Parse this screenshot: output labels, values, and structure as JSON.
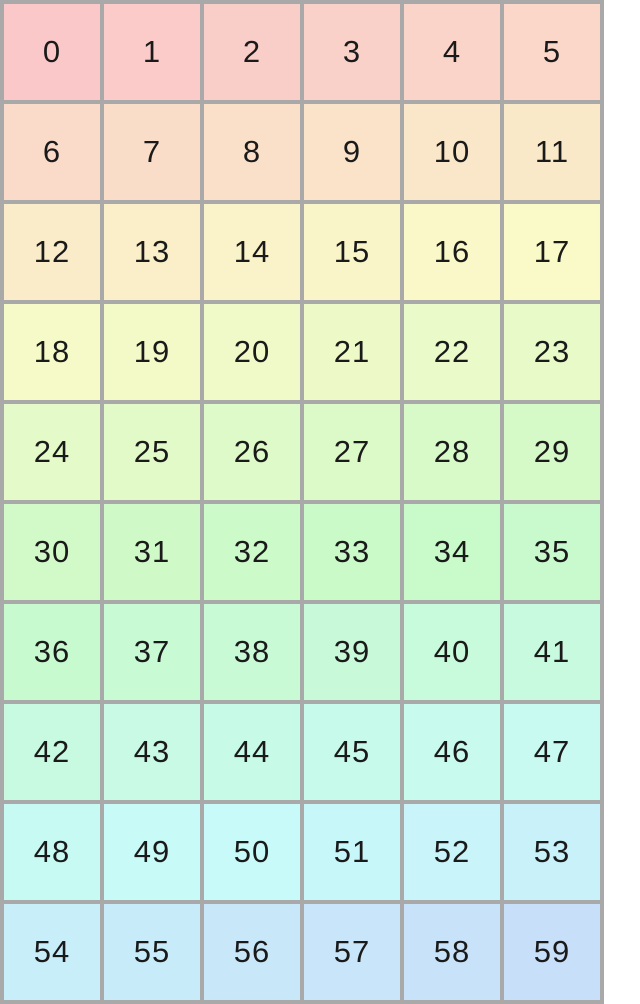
{
  "page": {
    "background_color": "#ffffff"
  },
  "grid": {
    "columns": 6,
    "rows": 10,
    "border_color": "#a9a9a9",
    "text_color": "#1a1a1a",
    "cells": [
      {
        "label": "0",
        "color": "#fac8c8"
      },
      {
        "label": "1",
        "color": "#facbc8"
      },
      {
        "label": "2",
        "color": "#facec8"
      },
      {
        "label": "3",
        "color": "#fad1c8"
      },
      {
        "label": "4",
        "color": "#fad4c8"
      },
      {
        "label": "5",
        "color": "#fad7c8"
      },
      {
        "label": "6",
        "color": "#fadac8"
      },
      {
        "label": "7",
        "color": "#faddc8"
      },
      {
        "label": "8",
        "color": "#fae0c8"
      },
      {
        "label": "9",
        "color": "#fae3c8"
      },
      {
        "label": "10",
        "color": "#fae6c8"
      },
      {
        "label": "11",
        "color": "#fae9c8"
      },
      {
        "label": "12",
        "color": "#faecc8"
      },
      {
        "label": "13",
        "color": "#faefc8"
      },
      {
        "label": "14",
        "color": "#faf2c8"
      },
      {
        "label": "15",
        "color": "#faf5c8"
      },
      {
        "label": "16",
        "color": "#faf8c8"
      },
      {
        "label": "17",
        "color": "#f9fac8"
      },
      {
        "label": "18",
        "color": "#f6fac8"
      },
      {
        "label": "19",
        "color": "#f3fac8"
      },
      {
        "label": "20",
        "color": "#f0fac8"
      },
      {
        "label": "21",
        "color": "#edfac8"
      },
      {
        "label": "22",
        "color": "#eafac8"
      },
      {
        "label": "23",
        "color": "#e7fac8"
      },
      {
        "label": "24",
        "color": "#e4fac8"
      },
      {
        "label": "25",
        "color": "#e1fac8"
      },
      {
        "label": "26",
        "color": "#defac8"
      },
      {
        "label": "27",
        "color": "#dbfac8"
      },
      {
        "label": "28",
        "color": "#d8fac8"
      },
      {
        "label": "29",
        "color": "#d5fac8"
      },
      {
        "label": "30",
        "color": "#d2fac8"
      },
      {
        "label": "31",
        "color": "#cffac8"
      },
      {
        "label": "32",
        "color": "#ccfac8"
      },
      {
        "label": "33",
        "color": "#c9fac8"
      },
      {
        "label": "34",
        "color": "#c8faca"
      },
      {
        "label": "35",
        "color": "#c8facd"
      },
      {
        "label": "36",
        "color": "#c8fad0"
      },
      {
        "label": "37",
        "color": "#c8fad3"
      },
      {
        "label": "38",
        "color": "#c8fad6"
      },
      {
        "label": "39",
        "color": "#c8fad9"
      },
      {
        "label": "40",
        "color": "#c8fadc"
      },
      {
        "label": "41",
        "color": "#c8fadf"
      },
      {
        "label": "42",
        "color": "#c8fae2"
      },
      {
        "label": "43",
        "color": "#c8fae5"
      },
      {
        "label": "44",
        "color": "#c8fae8"
      },
      {
        "label": "45",
        "color": "#c8faeb"
      },
      {
        "label": "46",
        "color": "#c8faee"
      },
      {
        "label": "47",
        "color": "#c8faf1"
      },
      {
        "label": "48",
        "color": "#c8faf4"
      },
      {
        "label": "49",
        "color": "#c8faf7"
      },
      {
        "label": "50",
        "color": "#c8fafa"
      },
      {
        "label": "51",
        "color": "#c8f7fa"
      },
      {
        "label": "52",
        "color": "#c8f4fa"
      },
      {
        "label": "53",
        "color": "#c8f1fa"
      },
      {
        "label": "54",
        "color": "#c8eefa"
      },
      {
        "label": "55",
        "color": "#c8ebfa"
      },
      {
        "label": "56",
        "color": "#c8e8fa"
      },
      {
        "label": "57",
        "color": "#c8e5fa"
      },
      {
        "label": "58",
        "color": "#c8e2fa"
      },
      {
        "label": "59",
        "color": "#c8dffa"
      }
    ]
  }
}
